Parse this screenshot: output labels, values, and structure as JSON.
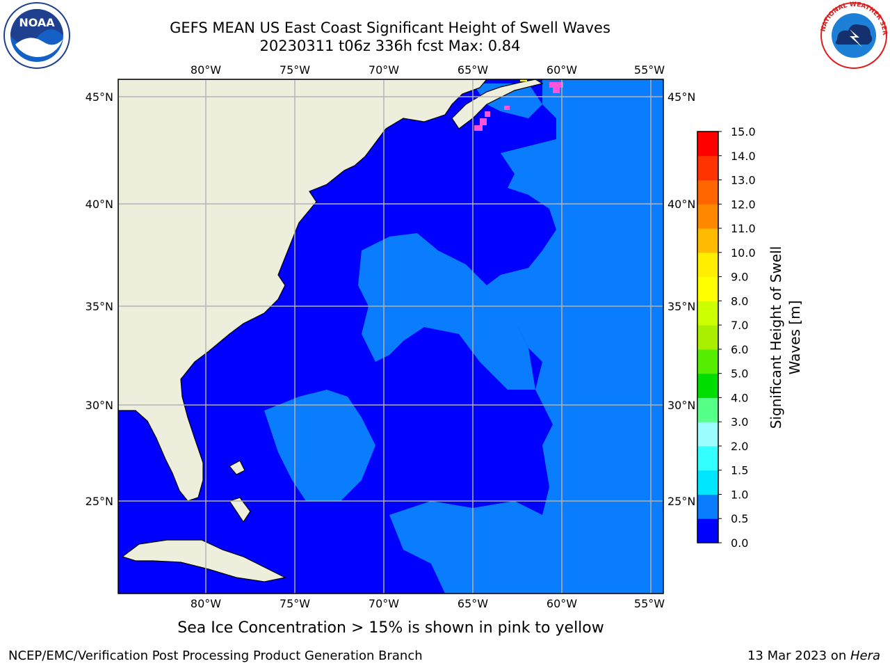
{
  "title": {
    "line1": "GEFS MEAN US East Coast Significant Height of Swell Waves",
    "line2": "20230311 t06z 336h fcst   Max: 0.84"
  },
  "map": {
    "lon_labels": [
      "80°W",
      "75°W",
      "70°W",
      "65°W",
      "60°W",
      "55°W"
    ],
    "lat_labels": [
      "45°N",
      "40°N",
      "35°N",
      "30°N",
      "25°N"
    ],
    "colors": {
      "land": "#eeeedc",
      "ocean_low": "#0000ff",
      "ocean_mid": "#0a7dff",
      "ice": "#ff55dd",
      "ice_yellow": "#ffff00",
      "grid": "#b4b4b4"
    }
  },
  "colorbar": {
    "label": "Significant Height of Swell Waves [m]",
    "ticks": [
      "0.0",
      "0.5",
      "1.0",
      "1.5",
      "2.0",
      "3.0",
      "4.0",
      "5.0",
      "6.0",
      "7.0",
      "8.0",
      "9.0",
      "10.0",
      "11.0",
      "12.0",
      "13.0",
      "14.0",
      "15.0"
    ],
    "colors": [
      "#0000ff",
      "#0a7dff",
      "#00e6ff",
      "#33ffff",
      "#9bffff",
      "#55ff88",
      "#00dd00",
      "#55ee00",
      "#aaee00",
      "#ccff00",
      "#ffff00",
      "#ffee00",
      "#ffbb00",
      "#ff8800",
      "#ff6600",
      "#ff3300",
      "#ff0000"
    ]
  },
  "footer": {
    "note": "Sea Ice Concentration > 15% is shown in pink to yellow",
    "credit_left": "NCEP/EMC/Verification Post Processing Product Generation Branch",
    "credit_date": "13 Mar 2023 on ",
    "credit_host": "Hera"
  },
  "logos": {
    "noaa_text": "NOAA",
    "nws_text": "NATIONAL WEATHER SERVICE"
  }
}
